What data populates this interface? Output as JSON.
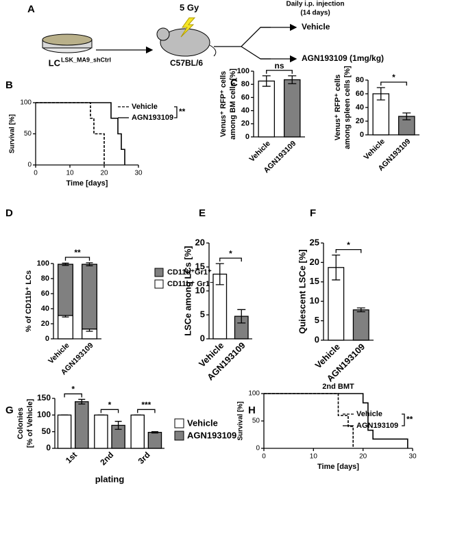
{
  "panel_a": {
    "label": "A",
    "cells": "LC",
    "cells_sup": "LSK_MA9_shCtrl",
    "dose": "5 Gy",
    "mouse": "C57BL/6",
    "treatment": "Daily i.p. injection",
    "duration": "(14 days)",
    "arm_1": "Vehicle",
    "arm_2": "AGN193109 (1mg/kg)"
  },
  "chart_data": [
    {
      "panel": "B",
      "type": "line",
      "xlabel": "Time [days]",
      "ylabel": "Survival [%]",
      "xlim": [
        0,
        30
      ],
      "xticks": [
        0,
        10,
        20,
        30
      ],
      "ylim": [
        0,
        100
      ],
      "yticks": [
        0,
        50,
        100
      ],
      "series": [
        {
          "name": "Vehicle",
          "color": "#000000",
          "dashed": true,
          "x": [
            0,
            16,
            16,
            17,
            17,
            20,
            20
          ],
          "values": [
            100,
            100,
            75,
            75,
            50,
            50,
            0
          ]
        },
        {
          "name": "AGN193109",
          "color": "#000000",
          "dashed": false,
          "x": [
            0,
            22,
            22,
            24,
            24,
            25,
            25,
            26,
            26
          ],
          "values": [
            100,
            100,
            75,
            75,
            50,
            50,
            25,
            25,
            0
          ]
        }
      ],
      "annotation": "**"
    },
    {
      "panel": "C",
      "type": "bar",
      "ylabel": [
        "Venus⁺ RFP⁺ cells",
        "among BM cells [%]"
      ],
      "categories": [
        "Vehicle",
        "AGN193109"
      ],
      "values": [
        85,
        87
      ],
      "errors": [
        8,
        6
      ],
      "colors": [
        "#ffffff",
        "#808080"
      ],
      "ylim": [
        0,
        100
      ],
      "yticks": [
        0,
        20,
        40,
        60,
        80,
        100
      ],
      "annotation": "ns"
    },
    {
      "type": "bar",
      "ylabel": [
        "Venus⁺ RFP⁺ cells",
        "among spleen cells [%]"
      ],
      "categories": [
        "Vehicle",
        "AGN193109"
      ],
      "values": [
        60,
        27
      ],
      "errors": [
        9,
        5
      ],
      "colors": [
        "#ffffff",
        "#808080"
      ],
      "ylim": [
        0,
        80
      ],
      "yticks": [
        0,
        20,
        40,
        60,
        80
      ],
      "annotation": "*"
    },
    {
      "panel": "D",
      "type": "bar",
      "stacked": true,
      "ylabel": "% of CD11b⁺ LCs",
      "categories": [
        "Vehicle",
        "AGN193109"
      ],
      "series": [
        {
          "name": "CD11b⁺ Gr1⁻",
          "color": "#ffffff",
          "values": [
            31,
            13
          ],
          "errors": [
            2,
            3
          ]
        },
        {
          "name": "CD11b⁺Gr1⁺",
          "color": "#808080",
          "values": [
            68,
            86
          ],
          "errors": [
            1.5,
            2
          ]
        }
      ],
      "ylim": [
        0,
        100
      ],
      "yticks": [
        0,
        20,
        40,
        60,
        80,
        100
      ],
      "annotation": "**"
    },
    {
      "panel": "E",
      "type": "bar",
      "ylabel": "LSCe among LCs [%]",
      "categories": [
        "Vehicle",
        "AGN193109"
      ],
      "values": [
        13.5,
        4.7
      ],
      "errors": [
        2.2,
        1.4
      ],
      "colors": [
        "#ffffff",
        "#808080"
      ],
      "ylim": [
        0,
        20
      ],
      "yticks": [
        0,
        5,
        10,
        15,
        20
      ],
      "annotation": "*"
    },
    {
      "panel": "F",
      "type": "bar",
      "ylabel": "Quiescent LSCe [%]",
      "categories": [
        "Vehicle",
        "AGN193109"
      ],
      "values": [
        18.7,
        7.8
      ],
      "errors": [
        3.2,
        0.5
      ],
      "colors": [
        "#ffffff",
        "#808080"
      ],
      "ylim": [
        0,
        25
      ],
      "yticks": [
        0,
        5,
        10,
        15,
        20,
        25
      ],
      "annotation": "*"
    },
    {
      "panel": "G",
      "type": "bar",
      "stacked": false,
      "ylabel": [
        "Colonies",
        "[% of Vehicle]"
      ],
      "xlabel": "plating",
      "categories": [
        "1st",
        "2nd",
        "3rd"
      ],
      "series": [
        {
          "name": "Vehicle",
          "color": "#ffffff",
          "values": [
            100,
            100,
            100
          ],
          "errors": [
            0,
            0,
            0
          ]
        },
        {
          "name": "AGN193109",
          "color": "#808080",
          "values": [
            140,
            69,
            48
          ],
          "errors": [
            7,
            12,
            2
          ]
        }
      ],
      "ylim": [
        0,
        150
      ],
      "yticks": [
        0,
        50,
        100,
        150
      ],
      "annotations": [
        "*",
        "*",
        "***"
      ]
    },
    {
      "panel": "H",
      "type": "line",
      "title": "2nd BMT",
      "xlabel": "Time [days]",
      "ylabel": "Survival [%]",
      "xlim": [
        0,
        30
      ],
      "xticks": [
        0,
        10,
        20,
        30
      ],
      "ylim": [
        0,
        100
      ],
      "yticks": [
        0,
        50,
        100
      ],
      "series": [
        {
          "name": "Vehicle",
          "color": "#000000",
          "dashed": true,
          "x": [
            0,
            15,
            15,
            17,
            17,
            18,
            18
          ],
          "values": [
            100,
            100,
            60,
            60,
            40,
            40,
            0
          ]
        },
        {
          "name": "AGN193109",
          "color": "#000000",
          "dashed": false,
          "x": [
            0,
            20,
            20,
            21,
            21,
            22,
            22,
            29,
            29
          ],
          "values": [
            100,
            100,
            83,
            83,
            33,
            33,
            17,
            17,
            0
          ]
        }
      ],
      "annotation": "**"
    }
  ]
}
